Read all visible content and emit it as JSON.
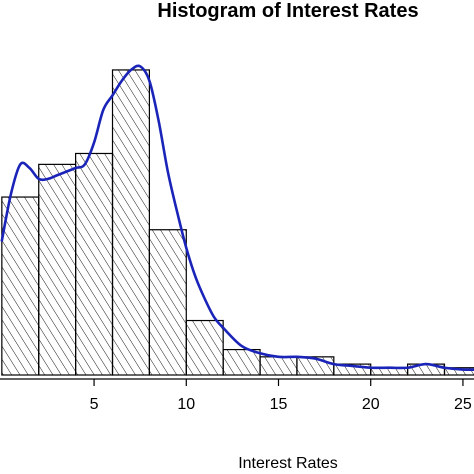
{
  "chart_data": {
    "type": "bar",
    "title": "Histogram of Interest Rates",
    "xlabel": "Interest Rates",
    "ylabel": "",
    "bins": [
      {
        "from": 0,
        "to": 2,
        "density": 0.049
      },
      {
        "from": 2,
        "to": 4,
        "density": 0.058
      },
      {
        "from": 4,
        "to": 6,
        "density": 0.061
      },
      {
        "from": 6,
        "to": 8,
        "density": 0.084
      },
      {
        "from": 8,
        "to": 10,
        "density": 0.04
      },
      {
        "from": 10,
        "to": 12,
        "density": 0.015
      },
      {
        "from": 12,
        "to": 14,
        "density": 0.007
      },
      {
        "from": 14,
        "to": 16,
        "density": 0.005
      },
      {
        "from": 16,
        "to": 18,
        "density": 0.005
      },
      {
        "from": 18,
        "to": 20,
        "density": 0.003
      },
      {
        "from": 20,
        "to": 22,
        "density": 0.002
      },
      {
        "from": 22,
        "to": 24,
        "density": 0.003
      },
      {
        "from": 24,
        "to": 26,
        "density": 0.002
      }
    ],
    "density_curve": {
      "x": [
        0,
        0.5,
        1,
        1.5,
        2,
        2.5,
        3,
        3.5,
        4,
        4.5,
        5,
        5.5,
        6,
        6.5,
        7,
        7.5,
        8,
        8.5,
        9,
        9.5,
        10,
        10.5,
        11,
        11.5,
        12,
        13,
        14,
        15,
        16,
        17,
        18,
        19,
        20,
        21,
        22,
        23,
        24,
        25,
        26
      ],
      "y": [
        0.037,
        0.05,
        0.058,
        0.057,
        0.054,
        0.054,
        0.055,
        0.056,
        0.057,
        0.058,
        0.064,
        0.073,
        0.077,
        0.081,
        0.084,
        0.085,
        0.081,
        0.07,
        0.056,
        0.045,
        0.035,
        0.027,
        0.021,
        0.016,
        0.013,
        0.008,
        0.006,
        0.005,
        0.005,
        0.0045,
        0.003,
        0.0025,
        0.002,
        0.002,
        0.002,
        0.003,
        0.002,
        0.0015,
        0.0015
      ]
    },
    "xlim": [
      -0.1,
      25.6
    ],
    "ylim": [
      0,
      0.095
    ],
    "xticks": [
      5,
      10,
      15,
      20,
      25
    ],
    "grid": false,
    "colors": {
      "bars_fill": "hatched",
      "bars_stroke": "#000000",
      "curve": "#1a24b8"
    }
  }
}
